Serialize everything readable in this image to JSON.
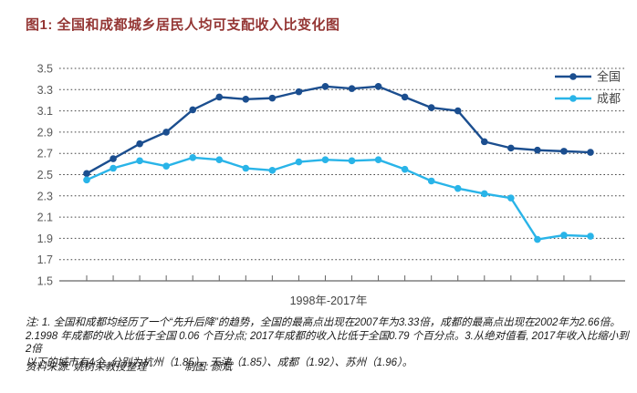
{
  "title": "图1: 全国和成都城乡居民人均可支配收入比变化图",
  "colors": {
    "title": "#943634",
    "national_line": "#1b4e8f",
    "chengdu_line": "#29b4e8",
    "gridline": "#444444",
    "axis": "#666666",
    "tick_label": "#595959",
    "legend_text": "#444444"
  },
  "chart_data": {
    "type": "line",
    "x": [
      1998,
      1999,
      2000,
      2001,
      2002,
      2003,
      2004,
      2005,
      2006,
      2007,
      2008,
      2009,
      2010,
      2011,
      2012,
      2013,
      2014,
      2015,
      2016,
      2017
    ],
    "series": [
      {
        "key": "national",
        "name": "全国",
        "color": "#1b4e8f",
        "values": [
          2.51,
          2.65,
          2.79,
          2.9,
          3.11,
          3.23,
          3.21,
          3.22,
          3.28,
          3.33,
          3.31,
          3.33,
          3.23,
          3.13,
          3.1,
          2.81,
          2.75,
          2.73,
          2.72,
          2.71
        ]
      },
      {
        "key": "chengdu",
        "name": "成都",
        "color": "#29b4e8",
        "values": [
          2.45,
          2.56,
          2.63,
          2.58,
          2.66,
          2.64,
          2.56,
          2.54,
          2.62,
          2.64,
          2.63,
          2.64,
          2.55,
          2.44,
          2.37,
          2.32,
          2.28,
          1.89,
          1.93,
          1.92
        ]
      }
    ],
    "title": "图1: 全国和成都城乡居民人均可支配收入比变化图",
    "xlabel": "1998年-2017年",
    "ylabel": "",
    "ylim": [
      1.5,
      3.5
    ],
    "yticks": [
      1.5,
      1.7,
      1.9,
      2.1,
      2.3,
      2.5,
      2.7,
      2.9,
      3.1,
      3.3,
      3.5
    ],
    "grid": "horizontal-dotted",
    "legend_position": "top-right"
  },
  "notes": {
    "lines": [
      "注: 1. 全国和成都均经历了一个“先升后降”的趋势，全国的最高点出现在2007年为3.33倍，成都的最高点出现在2002年为2.66倍。",
      "2.1998 年成都的收入比低于全国 0.06 个百分点; 2017年成都的收入比低于全国0.79 个百分点。3.从绝对值看, 2017年收入比缩小到2倍",
      "以下的城市有4个, 分别为杭州（1.85）、天津（1.85）、成都（1.92）、苏州（1.96）。"
    ]
  },
  "source": {
    "label": "资料来源: 姚树荣教授整理",
    "credit": "制图: 颜斌"
  }
}
